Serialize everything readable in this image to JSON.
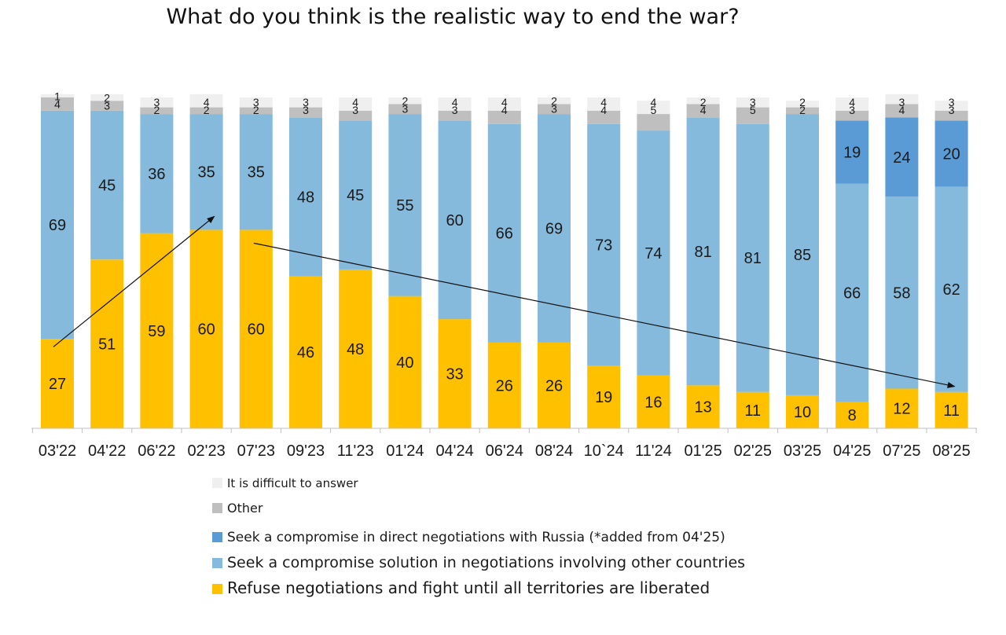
{
  "chart_data": {
    "type": "bar",
    "stacked": true,
    "title": "What do you think is the realistic way to end the war?",
    "xlabel": "",
    "ylabel": "",
    "ylim": [
      0,
      100
    ],
    "categories": [
      "03'22",
      "04'22",
      "06'22",
      "02'23",
      "07'23",
      "09'23",
      "11'23",
      "01'24",
      "04'24",
      "06'24",
      "08'24",
      "10`24",
      "11'24",
      "01'25",
      "02'25",
      "03'25",
      "04'25",
      "07'25",
      "08'25"
    ],
    "series": [
      {
        "key": "refuse",
        "name": "Refuse negotiations and fight until all territories are liberated",
        "color": "#FFC000",
        "values": [
          27,
          51,
          59,
          60,
          60,
          46,
          48,
          40,
          33,
          26,
          26,
          19,
          16,
          13,
          11,
          10,
          8,
          12,
          11
        ]
      },
      {
        "key": "other_countries",
        "name": "Seek a compromise solution in negotiations involving other countries",
        "color": "#86BADD",
        "values": [
          69,
          45,
          36,
          35,
          35,
          48,
          45,
          55,
          60,
          66,
          69,
          73,
          74,
          81,
          81,
          85,
          66,
          58,
          62
        ]
      },
      {
        "key": "direct",
        "name": "Seek a compromise in direct negotiations with Russia (*added from 04'25)",
        "color": "#5B9BD5",
        "values": [
          null,
          null,
          null,
          null,
          null,
          null,
          null,
          null,
          null,
          null,
          null,
          null,
          null,
          null,
          null,
          null,
          19,
          24,
          20
        ]
      },
      {
        "key": "other",
        "name": "Other",
        "color": "#BFBFBF",
        "values": [
          4,
          3,
          2,
          2,
          2,
          3,
          3,
          3,
          3,
          4,
          3,
          4,
          5,
          4,
          5,
          2,
          3,
          4,
          3
        ]
      },
      {
        "key": "difficult",
        "name": "It is difficult to answer",
        "color": "#EFEFEF",
        "values": [
          1,
          2,
          3,
          4,
          3,
          3,
          4,
          2,
          4,
          4,
          2,
          4,
          4,
          2,
          3,
          2,
          4,
          3,
          3
        ]
      }
    ],
    "legend_order": [
      "difficult",
      "other",
      "direct",
      "other_countries",
      "refuse"
    ],
    "legend_position": "bottom-center",
    "annotations": [
      {
        "type": "arrow",
        "from": {
          "category": "03'22",
          "value": 27
        },
        "to": {
          "category": "02'23",
          "value": 60
        }
      },
      {
        "type": "arrow",
        "from": {
          "category": "07'23",
          "value": 60
        },
        "to": {
          "category": "08'25",
          "value": 11
        }
      }
    ]
  }
}
